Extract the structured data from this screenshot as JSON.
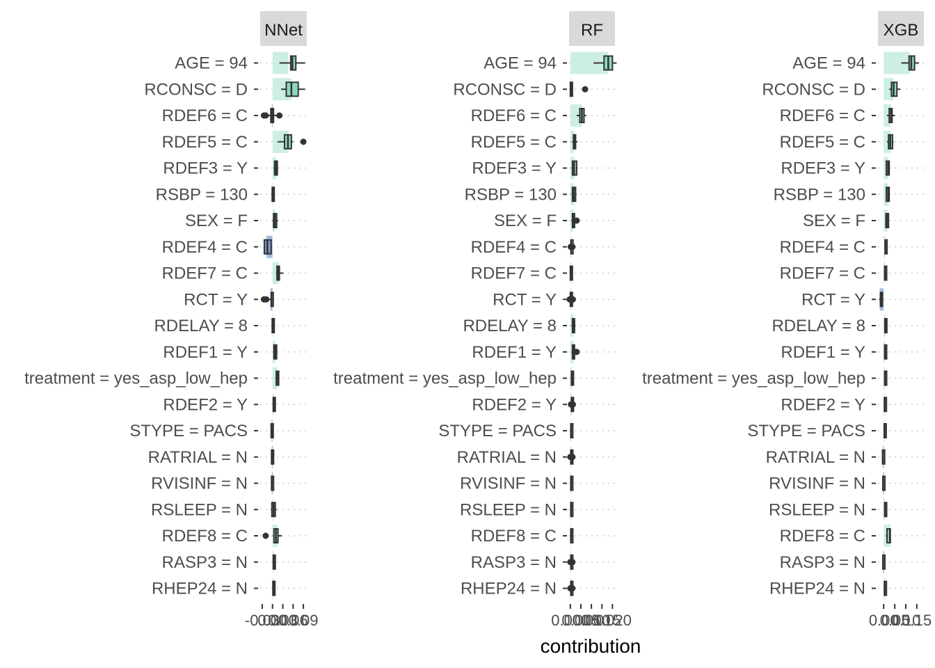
{
  "chart_data": {
    "type": "bar",
    "xlabel": "contribution",
    "features": [
      "AGE = 94",
      "RCONSC = D",
      "RDEF6 = C",
      "RDEF5 = C",
      "RDEF3 = Y",
      "RSBP = 130",
      "SEX = F",
      "RDEF4 = C",
      "RDEF7 = C",
      "RCT = Y",
      "RDELAY = 8",
      "RDEF1 = Y",
      "treatment = yes_asp_low_hep",
      "RDEF2 = Y",
      "STYPE = PACS",
      "RATRIAL = N",
      "RVISINF = N",
      "RSLEEP = N",
      "RDEF8 = C",
      "RASP3 = N",
      "RHEP24 = N"
    ],
    "colors": {
      "positive": "#ccefe2",
      "negative": "#a7bde0",
      "box_pos": "#8ed9bb",
      "box_neg": "#7f99cf",
      "strip": "#d9d9d9",
      "ink": "#333333"
    },
    "panels": [
      {
        "name": "NNet",
        "tick_labels": [
          "-0.03",
          "0.00",
          "0.03",
          "0.06",
          "0.09"
        ],
        "ticks": [
          -0.03,
          0.0,
          0.03,
          0.06,
          0.09
        ],
        "xlim": [
          -0.036,
          0.1
        ],
        "mean": [
          0.046,
          0.055,
          -0.002,
          0.046,
          0.01,
          0.002,
          0.008,
          -0.018,
          0.018,
          -0.006,
          0.001,
          0.008,
          0.014,
          0.004,
          -0.003,
          -0.002,
          -0.002,
          0.003,
          0.014,
          0.004,
          0.003
        ],
        "box": [
          [
            0.02,
            0.053,
            0.068,
            0.095
          ],
          [
            0.025,
            0.04,
            0.075,
            0.095
          ],
          [
            -0.02,
            -0.005,
            0.003,
            0.02
          ],
          [
            0.015,
            0.035,
            0.055,
            0.06
          ],
          [
            0.003,
            0.006,
            0.014,
            0.017
          ],
          [
            -0.004,
            -0.001,
            0.003,
            0.004
          ],
          [
            0.0,
            0.003,
            0.012,
            0.016
          ],
          [
            -0.025,
            -0.024,
            -0.004,
            -0.002
          ],
          [
            0.01,
            0.013,
            0.02,
            0.032
          ],
          [
            -0.015,
            -0.004,
            0.002,
            0.004
          ],
          [
            -0.002,
            -0.001,
            0.002,
            0.003
          ],
          [
            0.002,
            0.004,
            0.012,
            0.014
          ],
          [
            0.008,
            0.011,
            0.018,
            0.02
          ],
          [
            0.001,
            0.002,
            0.008,
            0.01
          ],
          [
            -0.006,
            -0.004,
            -0.001,
            0.0
          ],
          [
            -0.004,
            -0.003,
            0.0,
            0.001
          ],
          [
            -0.004,
            -0.003,
            0.0,
            0.001
          ],
          [
            -0.005,
            -0.002,
            0.008,
            0.012
          ],
          [
            0.001,
            0.004,
            0.016,
            0.027
          ],
          [
            0.001,
            0.002,
            0.006,
            0.007
          ],
          [
            0.0,
            0.001,
            0.006,
            0.007
          ]
        ],
        "median": [
          0.058,
          0.055,
          -0.001,
          0.045,
          0.01,
          0.001,
          0.007,
          -0.015,
          0.017,
          -0.003,
          0.001,
          0.008,
          0.014,
          0.004,
          -0.002,
          -0.001,
          -0.002,
          0.003,
          0.01,
          0.004,
          0.003
        ],
        "outliers": [
          [],
          [],
          [
            -0.025,
            -0.02,
            0.02
          ],
          [
            0.09
          ],
          [],
          [],
          [],
          [],
          [],
          [
            -0.025,
            -0.018
          ],
          [],
          [],
          [],
          [],
          [],
          [],
          [],
          [],
          [
            -0.02
          ],
          [],
          []
        ]
      },
      {
        "name": "RF",
        "tick_labels": [
          "0.000",
          "0.005",
          "0.010",
          "0.015",
          "0.020"
        ],
        "ticks": [
          0.0,
          0.005,
          0.01,
          0.015,
          0.02
        ],
        "xlim": [
          -0.0006,
          0.0212
        ],
        "mean": [
          0.0178,
          0.0004,
          0.0055,
          0.0018,
          0.002,
          0.0017,
          0.0015,
          0.0004,
          0.0003,
          0.0003,
          0.0015,
          0.0015,
          0.0008,
          0.0008,
          0.0004,
          0.0005,
          0.0004,
          0.0004,
          0.0004,
          0.0004,
          0.0004
        ],
        "box": [
          [
            0.011,
            0.016,
            0.02,
            0.022
          ],
          [
            0.0,
            0.0,
            0.001,
            0.0012
          ],
          [
            0.003,
            0.0045,
            0.0065,
            0.0075
          ],
          [
            0.0008,
            0.0015,
            0.0025,
            0.0035
          ],
          [
            0.0005,
            0.001,
            0.003,
            0.0035
          ],
          [
            0.0005,
            0.001,
            0.0025,
            0.003
          ],
          [
            0.0005,
            0.001,
            0.002,
            0.0035
          ],
          [
            0.0,
            0.0003,
            0.0006,
            0.0008
          ],
          [
            -0.0003,
            0.0,
            0.0006,
            0.0008
          ],
          [
            -0.0003,
            0.0,
            0.0005,
            0.0008
          ],
          [
            0.0005,
            0.001,
            0.002,
            0.0025
          ],
          [
            0.0005,
            0.001,
            0.002,
            0.003
          ],
          [
            0.0003,
            0.0005,
            0.001,
            0.0012
          ],
          [
            0.0003,
            0.0005,
            0.001,
            0.0012
          ],
          [
            0.0,
            0.0002,
            0.0006,
            0.0008
          ],
          [
            0.0,
            0.0002,
            0.0007,
            0.001
          ],
          [
            0.0,
            0.0002,
            0.0006,
            0.0008
          ],
          [
            0.0,
            0.0002,
            0.0006,
            0.0008
          ],
          [
            0.0,
            0.0002,
            0.0006,
            0.0008
          ],
          [
            0.0,
            0.0002,
            0.0006,
            0.0008
          ],
          [
            0.0,
            0.0002,
            0.0006,
            0.0008
          ]
        ],
        "median": [
          0.018,
          0.0005,
          0.0055,
          0.0018,
          0.0018,
          0.0017,
          0.0015,
          0.0004,
          0.0003,
          0.0003,
          0.0015,
          0.0015,
          0.0008,
          0.0008,
          0.0004,
          0.0005,
          0.0004,
          0.0004,
          0.0004,
          0.0004,
          0.0004
        ],
        "outliers": [
          [],
          [
            0.007
          ],
          [],
          [],
          [],
          [],
          [
            0.003
          ],
          [
            0.001,
            0.0002
          ],
          [],
          [
            -0.0003,
            0.0012
          ],
          [],
          [
            0.003
          ],
          [],
          [
            0.0012,
            0.0003
          ],
          [],
          [
            0.001,
            0.0
          ],
          [],
          [],
          [],
          [
            0.001,
            0.0
          ],
          [
            0.001,
            0.0
          ]
        ]
      },
      {
        "name": "XGB",
        "tick_labels": [
          "0.00",
          "0.05",
          "0.10",
          "0.15"
        ],
        "ticks": [
          0.0,
          0.05,
          0.1,
          0.15
        ],
        "xlim": [
          -0.026,
          0.182
        ],
        "mean": [
          0.118,
          0.045,
          0.033,
          0.03,
          0.02,
          0.02,
          0.017,
          0.008,
          0.005,
          -0.018,
          0.008,
          0.006,
          0.006,
          0.005,
          0.004,
          -0.004,
          -0.003,
          0.006,
          0.03,
          -0.003,
          0.005
        ],
        "box": [
          [
            0.08,
            0.115,
            0.14,
            0.16
          ],
          [
            0.025,
            0.035,
            0.06,
            0.075
          ],
          [
            0.015,
            0.025,
            0.038,
            0.05
          ],
          [
            0.015,
            0.022,
            0.04,
            0.045
          ],
          [
            0.01,
            0.012,
            0.025,
            0.028
          ],
          [
            0.01,
            0.012,
            0.025,
            0.028
          ],
          [
            0.008,
            0.01,
            0.022,
            0.024
          ],
          [
            0.004,
            0.006,
            0.01,
            0.012
          ],
          [
            0.002,
            0.004,
            0.008,
            0.01
          ],
          [
            -0.02,
            -0.015,
            -0.01,
            -0.008
          ],
          [
            0.004,
            0.005,
            0.01,
            0.012
          ],
          [
            0.002,
            0.004,
            0.008,
            0.01
          ],
          [
            0.002,
            0.004,
            0.008,
            0.01
          ],
          [
            0.002,
            0.003,
            0.007,
            0.009
          ],
          [
            0.001,
            0.002,
            0.006,
            0.008
          ],
          [
            -0.006,
            -0.005,
            -0.002,
            -0.001
          ],
          [
            -0.005,
            -0.004,
            -0.002,
            -0.001
          ],
          [
            0.002,
            0.004,
            0.008,
            0.01
          ],
          [
            0.01,
            0.015,
            0.03,
            0.032
          ],
          [
            -0.005,
            -0.004,
            -0.002,
            -0.001
          ],
          [
            0.002,
            0.003,
            0.007,
            0.009
          ]
        ],
        "median": [
          0.125,
          0.045,
          0.033,
          0.03,
          0.02,
          0.02,
          0.015,
          0.008,
          0.006,
          -0.012,
          0.008,
          0.006,
          0.006,
          0.005,
          0.004,
          -0.004,
          -0.003,
          0.006,
          0.028,
          -0.003,
          0.005
        ],
        "outliers": [
          [],
          [],
          [],
          [],
          [],
          [],
          [],
          [],
          [],
          [],
          [],
          [],
          [],
          [],
          [],
          [],
          [],
          [],
          [],
          [],
          []
        ]
      }
    ]
  }
}
